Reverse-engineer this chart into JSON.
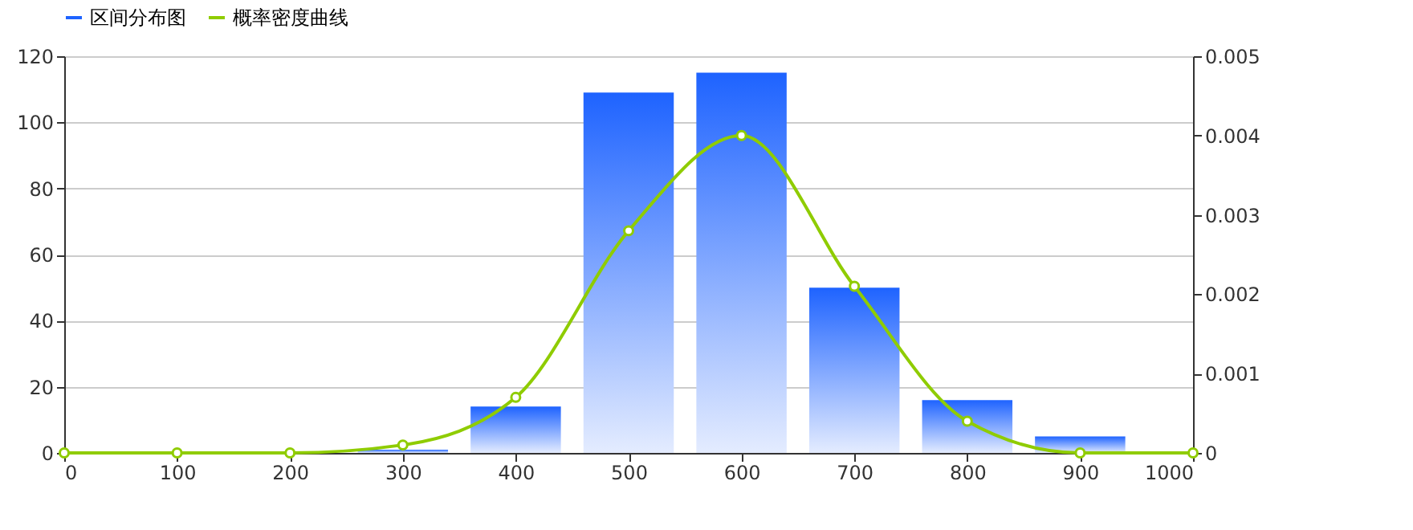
{
  "chart_data": {
    "type": "bar",
    "x": [
      0,
      100,
      200,
      300,
      400,
      500,
      600,
      700,
      800,
      900,
      1000
    ],
    "series": [
      {
        "name": "区间分布图",
        "color": "#1e63ff",
        "values": [
          0,
          0,
          0,
          1,
          14,
          109,
          115,
          50,
          16,
          5,
          0
        ]
      },
      {
        "name": "概率密度曲线",
        "type": "line",
        "axis": "y2",
        "color": "#8fcc00",
        "marker": "circle",
        "values": [
          0,
          0,
          0,
          0.0001,
          0.0007,
          0.0028,
          0.004,
          0.0021,
          0.0004,
          0,
          0
        ]
      }
    ],
    "xlim": [
      0,
      1000
    ],
    "xticks": [
      0,
      100,
      200,
      300,
      400,
      500,
      600,
      700,
      800,
      900,
      1000
    ],
    "ylim": [
      0,
      120
    ],
    "yticks": [
      0,
      20,
      40,
      60,
      80,
      100,
      120
    ],
    "y2lim": [
      0,
      0.005
    ],
    "y2ticks": [
      0,
      0.001,
      0.002,
      0.003,
      0.004,
      0.005
    ],
    "grid": "y",
    "legend": "top"
  }
}
